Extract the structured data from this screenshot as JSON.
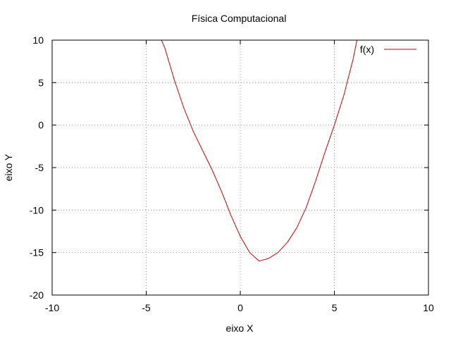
{
  "chart_data": {
    "type": "line",
    "title": "Física Computacional",
    "xlabel": "eixo X",
    "ylabel": "eixo Y",
    "xlim": [
      -10,
      10
    ],
    "ylim": [
      -20,
      10
    ],
    "x_ticks": [
      -10,
      -5,
      0,
      5,
      10
    ],
    "y_ticks": [
      -20,
      -15,
      -10,
      -5,
      0,
      5,
      10
    ],
    "grid": true,
    "legend_position": "top-right",
    "series": [
      {
        "name": "f(x)",
        "color": "#cc0000",
        "x": [
          -4.2,
          -4.0,
          -3.5,
          -3.0,
          -2.5,
          -2.0,
          -1.5,
          -1.0,
          -0.5,
          0.0,
          0.5,
          1.0,
          1.5,
          2.0,
          2.5,
          3.0,
          3.5,
          4.0,
          4.5,
          5.0,
          5.5,
          6.0,
          6.2
        ],
        "y": [
          10.04,
          9.0,
          5.25,
          2.0,
          -0.75,
          -3.0,
          -5.25,
          -7.8,
          -10.6,
          -13.1,
          -15.0,
          -16.0,
          -15.7,
          -15.0,
          -13.8,
          -12.1,
          -9.7,
          -6.6,
          -3.2,
          0.0,
          3.5,
          7.8,
          10.0
        ]
      }
    ]
  }
}
